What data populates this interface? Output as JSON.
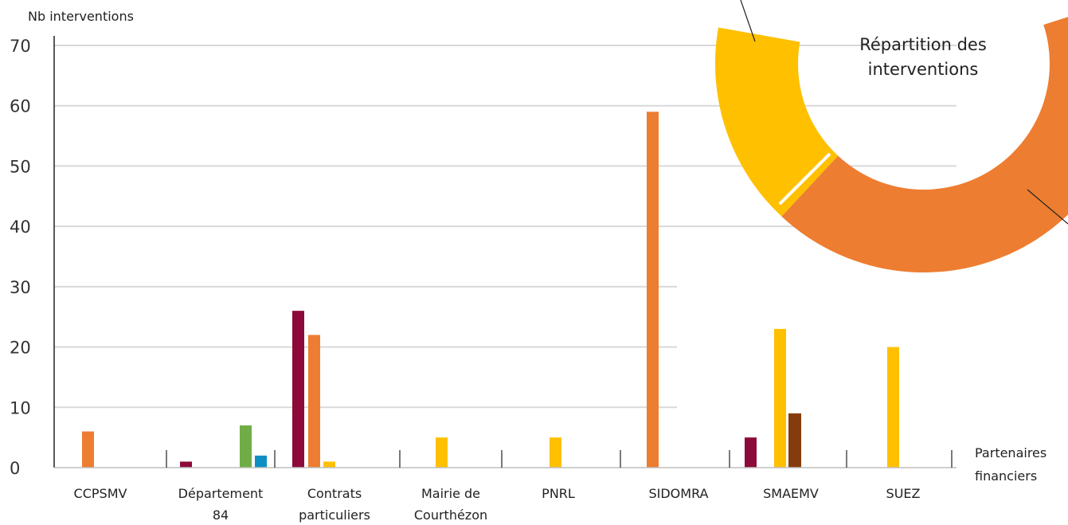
{
  "chart_data": {
    "type": "bar",
    "ylabel": "Nb interventions",
    "xlabel": [
      "Partenaires",
      "financiers"
    ],
    "ylim": [
      0,
      70
    ],
    "yticks": [
      0,
      10,
      20,
      30,
      40,
      50,
      60,
      70
    ],
    "grid": true,
    "categories": [
      [
        "CCPSMV"
      ],
      [
        "Département",
        "84"
      ],
      [
        "Contrats",
        "particuliers"
      ],
      [
        "Mairie de",
        "Courthézon"
      ],
      [
        "PNRL"
      ],
      [
        "SIDOMRA"
      ],
      [
        "SMAEMV"
      ],
      [
        "SUEZ"
      ]
    ],
    "series": [
      {
        "color": "#8B0A3A",
        "values": [
          0,
          1,
          26,
          0,
          0,
          0,
          5,
          0
        ]
      },
      {
        "color": "#ED7D31",
        "values": [
          6,
          0,
          22,
          0,
          0,
          59,
          0,
          0
        ]
      },
      {
        "color": "#FFC000",
        "values": [
          0,
          0,
          1,
          5,
          5,
          0,
          23,
          20
        ]
      },
      {
        "color": "#70AD47",
        "values": [
          0,
          7,
          0,
          0,
          0,
          0,
          0,
          0
        ]
      },
      {
        "color": "#0E8FC4",
        "values": [
          0,
          2,
          0,
          0,
          0,
          0,
          0,
          0
        ]
      },
      {
        "color": "#843C0C",
        "values": [
          0,
          0,
          0,
          0,
          0,
          0,
          9,
          0
        ]
      }
    ],
    "inset": {
      "type": "pie",
      "title": [
        "Répartition des",
        "interventions"
      ],
      "slice_colors": [
        "#FFC000",
        "#ED7D31"
      ]
    }
  }
}
